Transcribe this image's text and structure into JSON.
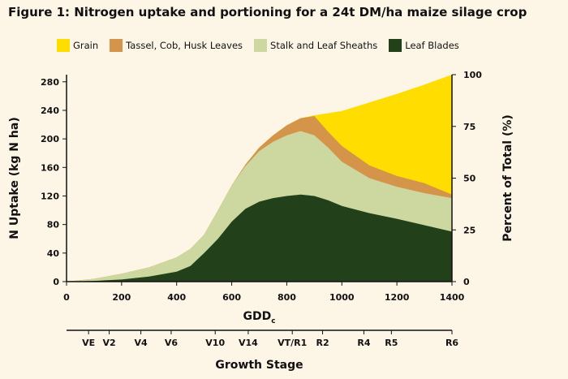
{
  "chart_data": {
    "type": "area",
    "title": "Figure 1: Nitrogen uptake and portioning for a 24t DM/ha maize silage crop",
    "xlabel": "GDD",
    "xlabel_subscript": "c",
    "ylabel_left": "N Uptake (kg N ha)",
    "ylabel_right": "Percent of Total (%)",
    "xlim": [
      0,
      1400
    ],
    "ylim": [
      0,
      290
    ],
    "ylim_right": [
      0,
      100
    ],
    "x_ticks": [
      "0",
      "200",
      "400",
      "600",
      "800",
      "1000",
      "1200",
      "1400"
    ],
    "y_ticks": [
      "0",
      "40",
      "80",
      "120",
      "160",
      "200",
      "240",
      "280"
    ],
    "y_right_ticks": [
      "0",
      "25",
      "50",
      "75",
      "100"
    ],
    "stacking": "cumulative (top of each band shown)",
    "series": [
      {
        "name": "Leaf Blades",
        "color": "#22411a",
        "points": [
          [
            0,
            0
          ],
          [
            100,
            1
          ],
          [
            200,
            3
          ],
          [
            300,
            7
          ],
          [
            400,
            14
          ],
          [
            450,
            22
          ],
          [
            500,
            40
          ],
          [
            550,
            60
          ],
          [
            600,
            84
          ],
          [
            650,
            102
          ],
          [
            700,
            112
          ],
          [
            750,
            117
          ],
          [
            800,
            120
          ],
          [
            850,
            122
          ],
          [
            900,
            120
          ],
          [
            950,
            114
          ],
          [
            1000,
            106
          ],
          [
            1100,
            96
          ],
          [
            1200,
            88
          ],
          [
            1300,
            79
          ],
          [
            1400,
            70
          ]
        ]
      },
      {
        "name": "Stalk and Leaf Sheaths",
        "color": "#cdd7a0",
        "points": [
          [
            0,
            0
          ],
          [
            100,
            4
          ],
          [
            200,
            11
          ],
          [
            300,
            20
          ],
          [
            400,
            34
          ],
          [
            450,
            46
          ],
          [
            500,
            66
          ],
          [
            550,
            100
          ],
          [
            600,
            135
          ],
          [
            650,
            162
          ],
          [
            700,
            183
          ],
          [
            750,
            196
          ],
          [
            800,
            205
          ],
          [
            850,
            211
          ],
          [
            900,
            205
          ],
          [
            950,
            188
          ],
          [
            1000,
            168
          ],
          [
            1100,
            145
          ],
          [
            1200,
            133
          ],
          [
            1300,
            124
          ],
          [
            1400,
            117
          ]
        ]
      },
      {
        "name": "Tassel, Cob, Husk Leaves",
        "color": "#d4944a",
        "points": [
          [
            0,
            0
          ],
          [
            100,
            4
          ],
          [
            200,
            11
          ],
          [
            300,
            20
          ],
          [
            400,
            34
          ],
          [
            450,
            46
          ],
          [
            500,
            66
          ],
          [
            550,
            100
          ],
          [
            600,
            135
          ],
          [
            650,
            164
          ],
          [
            700,
            188
          ],
          [
            750,
            205
          ],
          [
            800,
            219
          ],
          [
            850,
            229
          ],
          [
            900,
            232
          ],
          [
            950,
            210
          ],
          [
            1000,
            190
          ],
          [
            1100,
            163
          ],
          [
            1200,
            148
          ],
          [
            1300,
            138
          ],
          [
            1400,
            122
          ]
        ]
      },
      {
        "name": "Grain",
        "color": "#ffdd00",
        "points": [
          [
            0,
            0
          ],
          [
            100,
            4
          ],
          [
            200,
            11
          ],
          [
            300,
            20
          ],
          [
            400,
            34
          ],
          [
            450,
            46
          ],
          [
            500,
            66
          ],
          [
            550,
            100
          ],
          [
            600,
            135
          ],
          [
            650,
            164
          ],
          [
            700,
            188
          ],
          [
            750,
            205
          ],
          [
            800,
            219
          ],
          [
            850,
            229
          ],
          [
            900,
            233
          ],
          [
            1000,
            239
          ],
          [
            1100,
            251
          ],
          [
            1200,
            263
          ],
          [
            1300,
            276
          ],
          [
            1400,
            290
          ]
        ]
      }
    ],
    "growth_stage_label": "Growth Stage",
    "growth_stages": [
      {
        "label": "VE",
        "gdd": 80
      },
      {
        "label": "V2",
        "gdd": 155
      },
      {
        "label": "V4",
        "gdd": 270
      },
      {
        "label": "V6",
        "gdd": 380
      },
      {
        "label": "V10",
        "gdd": 540
      },
      {
        "label": "V14",
        "gdd": 660
      },
      {
        "label": "VT/R1",
        "gdd": 820
      },
      {
        "label": "R2",
        "gdd": 930
      },
      {
        "label": "R4",
        "gdd": 1080
      },
      {
        "label": "R5",
        "gdd": 1180
      },
      {
        "label": "R6",
        "gdd": 1400
      }
    ]
  },
  "legend_order": [
    "Grain",
    "Tassel, Cob, Husk Leaves",
    "Stalk and Leaf Sheaths",
    "Leaf Blades"
  ]
}
